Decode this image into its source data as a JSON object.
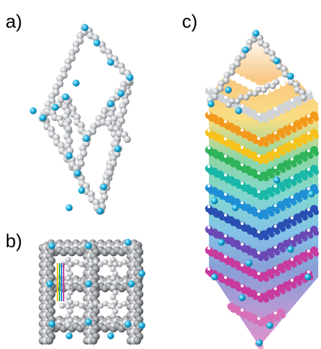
{
  "panels": {
    "a": {
      "label": "a)"
    },
    "b": {
      "label": "b)"
    },
    "c": {
      "label": "c)"
    }
  },
  "colors": {
    "atom_gray": "#b9bcc0",
    "atom_light": "#f2f2f2",
    "atom_cyan": "#1fb6e6",
    "layers": [
      "#f39a1d",
      "#f7c21b",
      "#2fb35a",
      "#19b7a8",
      "#1f8fd6",
      "#2a4fb3",
      "#6a49b5",
      "#c83a9e"
    ]
  }
}
